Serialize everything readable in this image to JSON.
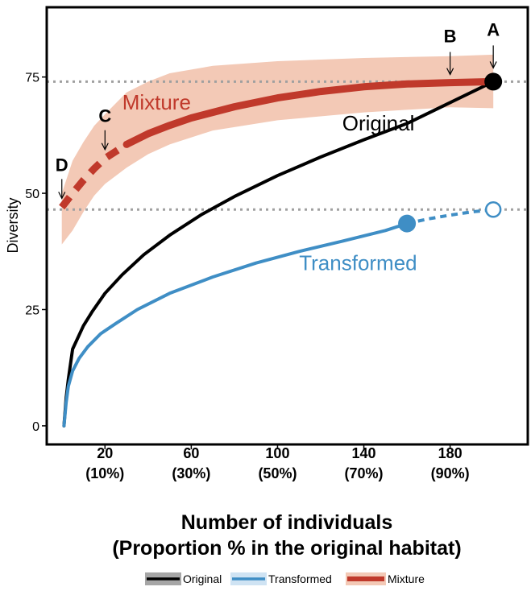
{
  "chart_data": {
    "type": "line",
    "xlabel_line1": "Number of individuals",
    "xlabel_line2": "(Proportion % in the original habitat)",
    "ylabel": "Diversity",
    "xlim": [
      -7,
      216
    ],
    "ylim": [
      -4,
      90
    ],
    "y_ticks": [
      {
        "value": 0,
        "label": "0"
      },
      {
        "value": 25,
        "label": "25"
      },
      {
        "value": 50,
        "label": "50"
      },
      {
        "value": 75,
        "label": "75"
      }
    ],
    "x_ticks": [
      {
        "value": 20,
        "label": "20",
        "sublabel": "(10%)"
      },
      {
        "value": 60,
        "label": "60",
        "sublabel": "(30%)"
      },
      {
        "value": 100,
        "label": "100",
        "sublabel": "(50%)"
      },
      {
        "value": 140,
        "label": "140",
        "sublabel": "(70%)"
      },
      {
        "value": 180,
        "label": "180",
        "sublabel": "(90%)"
      }
    ],
    "reference_lines": [
      74,
      46.5
    ],
    "series": [
      {
        "name": "Original",
        "color": "#000000",
        "x": [
          1,
          2,
          3,
          5,
          7,
          10,
          14,
          20,
          28,
          38,
          50,
          65,
          80,
          100,
          120,
          140,
          160,
          180,
          200
        ],
        "values": [
          0,
          6,
          10,
          16.5,
          18.5,
          21.5,
          24.5,
          28.5,
          32.5,
          36.8,
          41,
          45.5,
          49.3,
          53.8,
          57.8,
          61.5,
          65,
          69.5,
          74
        ]
      },
      {
        "name": "Transformed",
        "color": "#3f8ec5",
        "x": [
          1,
          2,
          3,
          5,
          8,
          12,
          18,
          25,
          35,
          50,
          70,
          90,
          110,
          130,
          150,
          160
        ],
        "values": [
          0,
          5,
          8.5,
          11.8,
          14.5,
          17,
          19.8,
          22,
          25,
          28.5,
          32,
          35,
          37.5,
          39.7,
          42,
          43.5
        ],
        "extension_x": [
          160,
          170,
          180,
          190,
          200
        ],
        "extension_values": [
          43.5,
          44.5,
          45.3,
          46,
          46.5
        ]
      },
      {
        "name": "Mixture",
        "color": "#c0392b",
        "band_color": "#f3c9b6",
        "dashed_x": [
          0,
          5,
          10,
          15,
          20,
          30
        ],
        "dashed_values": [
          47,
          50,
          52.8,
          55.3,
          57.5,
          60.5
        ],
        "x": [
          30,
          40,
          50,
          60,
          80,
          100,
          120,
          140,
          160,
          180,
          200
        ],
        "values": [
          60.5,
          62.8,
          64.6,
          66.2,
          68.6,
          70.5,
          71.9,
          72.9,
          73.5,
          73.8,
          74
        ],
        "band_upper": [
          null,
          57,
          61,
          64.5,
          67,
          71.7,
          74,
          75.8,
          77.4,
          78.4,
          79.1,
          79.5,
          79.8
        ],
        "band_lower": [
          39,
          42,
          46,
          49.5,
          52,
          55.5,
          58.4,
          60.5,
          63.5,
          65.7,
          67.4,
          68.5,
          68.3
        ],
        "band_x": [
          0,
          5,
          10,
          15,
          20,
          30,
          40,
          50,
          70,
          100,
          140,
          180,
          200
        ],
        "band_upper_start": 50
      }
    ],
    "point_labels": [
      {
        "label": "A",
        "x": 200,
        "y": 74
      },
      {
        "label": "B",
        "x": 180,
        "y": 73.8
      },
      {
        "label": "C",
        "x": 20,
        "y": 57.5
      },
      {
        "label": "D",
        "x": 0,
        "y": 47
      }
    ],
    "markers": [
      {
        "x": 200,
        "y": 74,
        "color": "#000000",
        "filled": true
      },
      {
        "x": 160,
        "y": 43.5,
        "color": "#3f8ec5",
        "filled": true
      },
      {
        "x": 200,
        "y": 46.5,
        "color": "#3f8ec5",
        "filled": false
      }
    ],
    "legend": {
      "placement": "bottom",
      "items": [
        {
          "name": "Original",
          "color": "#000000",
          "bg": "#a6a6a6"
        },
        {
          "name": "Transformed",
          "color": "#3f8ec5",
          "bg": "#cfe3f3"
        },
        {
          "name": "Mixture",
          "color": "#c0392b",
          "bg": "#f3c9b6"
        }
      ]
    }
  }
}
